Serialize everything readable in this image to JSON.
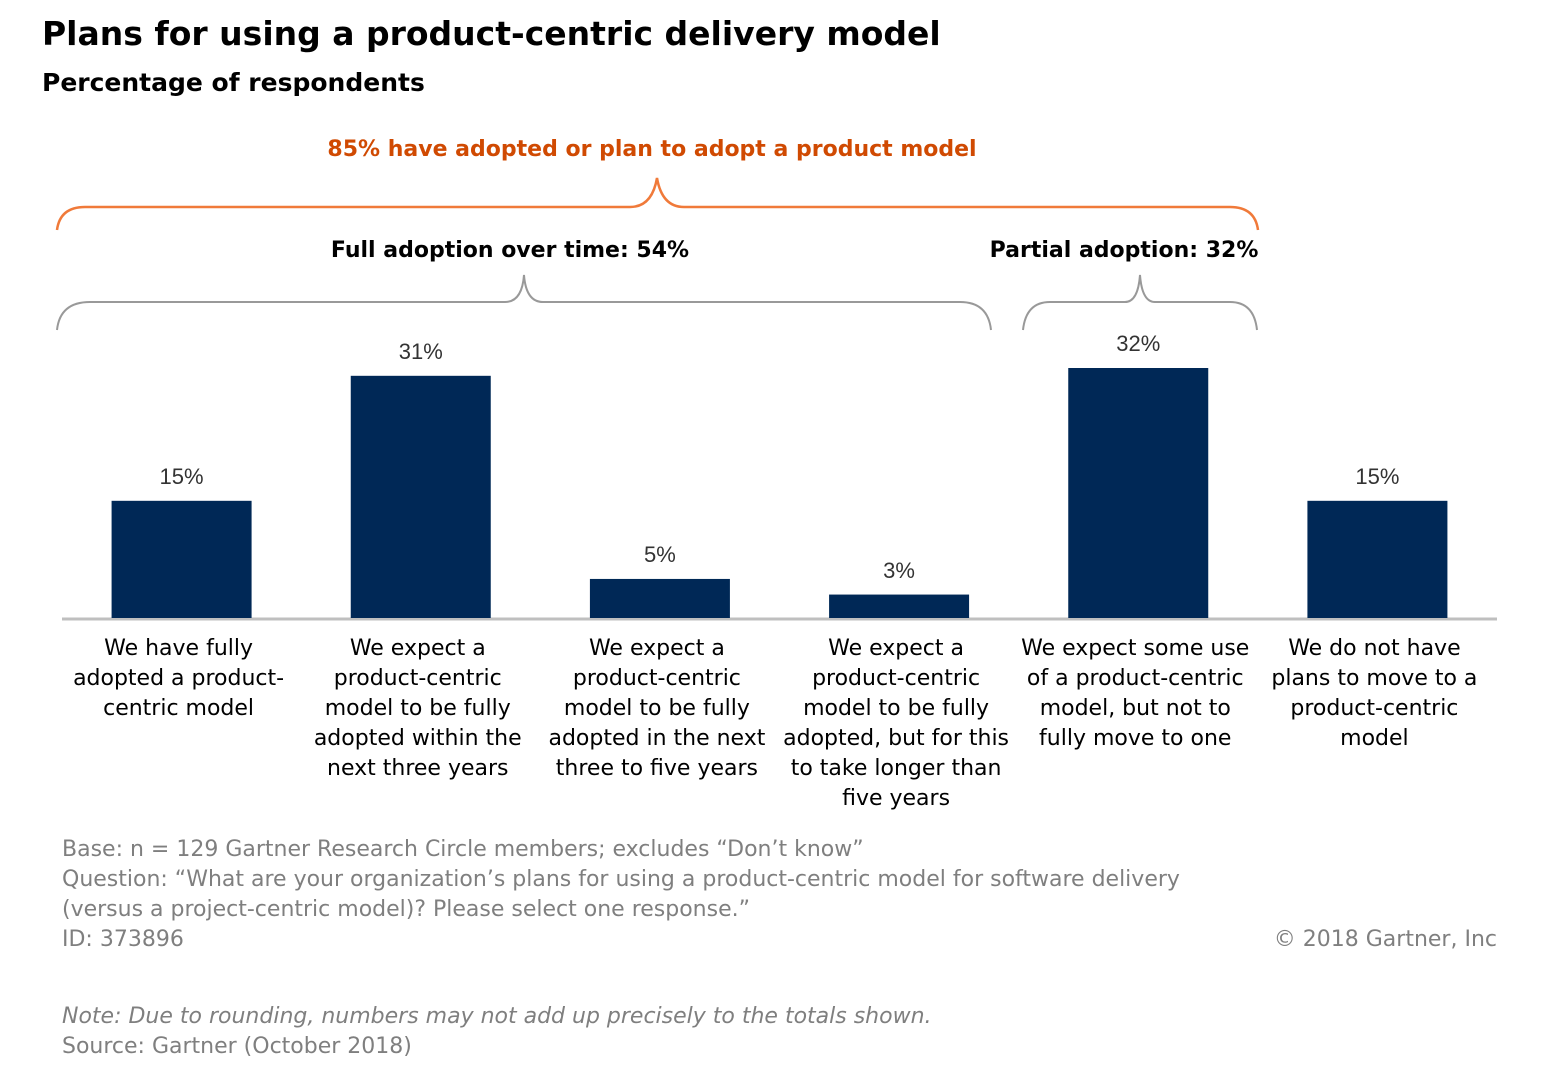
{
  "chart_data": {
    "type": "bar",
    "title": "Plans for using a product-centric delivery model",
    "subtitle": "Percentage of respondents",
    "annotations": [
      "85% have adopted or plan to adopt a product model",
      "Full adoption over time: 54%",
      "Partial adoption: 32%"
    ],
    "categories": [
      "We have fully adopted a product-centric model",
      "We expect a product-centric model to be fully adopted within the next three years",
      "We expect a product-centric model to be fully adopted in the next three to five years",
      "We expect a product-centric model to be fully adopted, but for this to take longer than five years",
      "We expect some use of a product-centric model, but not to fully move to one",
      "We do not have plans to move to a product-centric model"
    ],
    "values": [
      15,
      31,
      5,
      3,
      32,
      15
    ],
    "value_labels": [
      "15%",
      "31%",
      "5%",
      "3%",
      "32%",
      "15%"
    ],
    "color": "#002856"
  },
  "footnotes": {
    "base": "Base: n = 129 Gartner Research Circle members; excludes “Don’t know”",
    "question": "Question: “What are your organization’s plans for using a product-centric model for software delivery (versus a project-centric model)? Please select one response.”",
    "id": "ID: 373896",
    "copyright": "© 2018 Gartner, Inc",
    "note": "Note: Due to rounding, numbers may not add up precisely to the totals shown.",
    "source": "Source: Gartner (October 2018)"
  }
}
